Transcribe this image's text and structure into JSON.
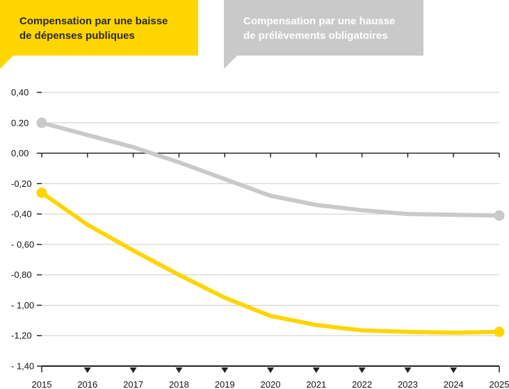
{
  "legend": {
    "yellow": {
      "line1": "Compensation par une baisse",
      "line2": "de dépenses publiques"
    },
    "grey": {
      "line1": "Compensation par une hausse",
      "line2": "de prélèvements obligatoires"
    }
  },
  "colors": {
    "yellow": "#FFD500",
    "grey": "#C9C9C9",
    "axis": "#222222",
    "grid": "#cccccc"
  },
  "chart_data": {
    "type": "line",
    "x": [
      2015,
      2016,
      2017,
      2018,
      2019,
      2020,
      2021,
      2022,
      2023,
      2024,
      2025
    ],
    "xticklabels": [
      "2015",
      "2016",
      "2017",
      "2018",
      "2019",
      "2020",
      "2021",
      "2022",
      "2023",
      "2024",
      "2025"
    ],
    "yticks": [
      0.4,
      0.2,
      0.0,
      -0.2,
      -0.4,
      -0.6,
      -0.8,
      -1.0,
      -1.2,
      -1.4
    ],
    "yticklabels": [
      "0,40",
      "0.20",
      "0,00",
      "-0,20",
      "-0,40",
      "- 0,60",
      "-0,80",
      "- 1,00",
      "-1,20",
      "- 1,40"
    ],
    "ylim": [
      -1.4,
      0.4
    ],
    "grid": true,
    "series": [
      {
        "name": "Compensation par une baisse de dépenses publiques",
        "color": "#FFD500",
        "values": [
          -0.26,
          -0.47,
          -0.64,
          -0.8,
          -0.95,
          -1.07,
          -1.13,
          -1.165,
          -1.175,
          -1.18,
          -1.175
        ]
      },
      {
        "name": "Compensation par une hausse de prélèvements obligatoires",
        "color": "#C9C9C9",
        "values": [
          0.2,
          0.12,
          0.04,
          -0.06,
          -0.17,
          -0.28,
          -0.34,
          -0.375,
          -0.4,
          -0.405,
          -0.41
        ]
      }
    ]
  }
}
